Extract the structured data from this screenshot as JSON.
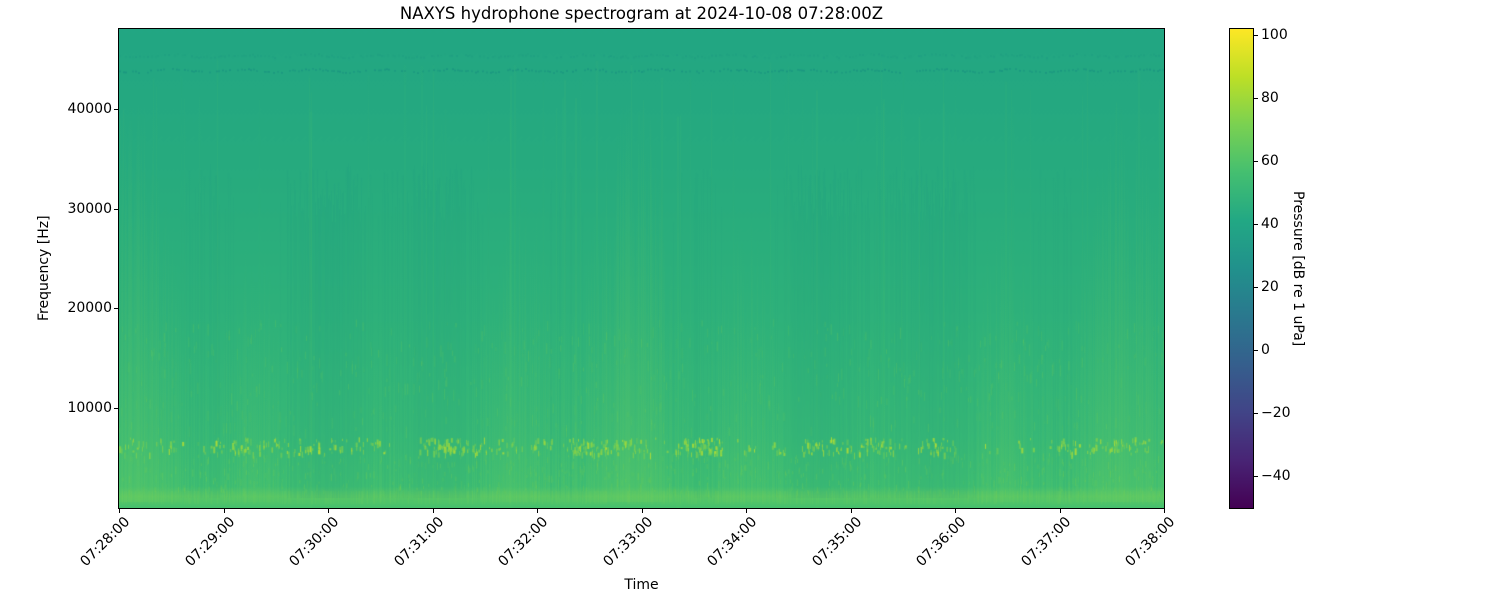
{
  "figure": {
    "title": "NAXYS hydrophone spectrogram at 2024-10-08 07:28:00Z",
    "background": "#ffffff"
  },
  "chart_data": {
    "type": "heatmap",
    "title": "NAXYS hydrophone spectrogram at 2024-10-08 07:28:00Z",
    "xlabel": "Time",
    "ylabel": "Frequency [Hz]",
    "x_tick_labels": [
      "07:28:00",
      "07:29:00",
      "07:30:00",
      "07:31:00",
      "07:32:00",
      "07:33:00",
      "07:34:00",
      "07:35:00",
      "07:36:00",
      "07:37:00",
      "07:38:00"
    ],
    "x_tick_rotation_deg": 45,
    "y_ticks": [
      10000,
      20000,
      30000,
      40000
    ],
    "y_tick_labels": [
      "10000",
      "20000",
      "30000",
      "40000"
    ],
    "ylim": [
      0,
      48000
    ],
    "grid": false,
    "colorbar": {
      "label": "Pressure [dB re 1 uPa]",
      "ticks": [
        100,
        80,
        60,
        40,
        20,
        0,
        -20,
        -40
      ],
      "tick_labels": [
        "100",
        "80",
        "60",
        "40",
        "20",
        "0",
        "−20",
        "−40"
      ],
      "vmin": -50,
      "vmax": 102,
      "colormap": "viridis",
      "colormap_stops": [
        {
          "pos": 0.0,
          "color": "#440154"
        },
        {
          "pos": 0.1,
          "color": "#482475"
        },
        {
          "pos": 0.2,
          "color": "#414487"
        },
        {
          "pos": 0.3,
          "color": "#355f8d"
        },
        {
          "pos": 0.4,
          "color": "#2a788e"
        },
        {
          "pos": 0.5,
          "color": "#21918c"
        },
        {
          "pos": 0.6,
          "color": "#22a884"
        },
        {
          "pos": 0.7,
          "color": "#44bf70"
        },
        {
          "pos": 0.8,
          "color": "#7ad151"
        },
        {
          "pos": 0.9,
          "color": "#bddf26"
        },
        {
          "pos": 1.0,
          "color": "#fde725"
        }
      ]
    },
    "content": {
      "description": "Broadband ambient level near 45-55 dB across 0-48 kHz with transient vertical striations strongest below 20 kHz, an impulsive bright band near 5-7 kHz reaching ~75 dB, an elevated light-green band below ~1.5 kHz, and a faint darker narrowband wavy line near 44 kHz.",
      "background_gradient": [
        {
          "pos": 0.0,
          "color": "#22a683"
        },
        {
          "pos": 0.3,
          "color": "#27ab7e"
        },
        {
          "pos": 0.6,
          "color": "#2eb17a"
        },
        {
          "pos": 0.85,
          "color": "#37b876"
        },
        {
          "pos": 0.955,
          "color": "#3ebd72"
        },
        {
          "pos": 0.966,
          "color": "#4cc26c"
        },
        {
          "pos": 0.976,
          "color": "#56c667"
        },
        {
          "pos": 0.99,
          "color": "#4ec46a"
        },
        {
          "pos": 1.0,
          "color": "#45c06e"
        }
      ],
      "streak_light_color": "120,210,90",
      "streak_dark_color": "20,140,135",
      "tall_streak_color": "94,208,106",
      "mid_band_color": "122,209,81",
      "bottom_band_streak_color": "134,214,84",
      "bright_band": {
        "y_frac_top": 0.852,
        "y_frac_bottom": 0.889,
        "colors": [
          "#7ad151",
          "#8ed645",
          "#a2da3b",
          "#b5de33"
        ]
      },
      "dark_line": {
        "y_frac": 0.086,
        "color": "18,132,128"
      },
      "dark_line2": {
        "y_frac": 0.055,
        "color": "22,140,130"
      }
    }
  }
}
